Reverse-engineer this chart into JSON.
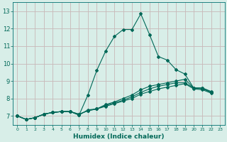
{
  "xlabel": "Humidex (Indice chaleur)",
  "xlim": [
    -0.5,
    23.5
  ],
  "ylim": [
    6.5,
    13.5
  ],
  "yticks": [
    7,
    8,
    9,
    10,
    11,
    12,
    13
  ],
  "xticks": [
    0,
    1,
    2,
    3,
    4,
    5,
    6,
    7,
    8,
    9,
    10,
    11,
    12,
    13,
    14,
    15,
    16,
    17,
    18,
    19,
    20,
    21,
    22,
    23
  ],
  "background_color": "#d8eee8",
  "grid_color": "#c8b8b8",
  "line_color": "#006858",
  "spine_color": "#007070",
  "lines": [
    [
      7.0,
      6.8,
      6.9,
      7.1,
      7.2,
      7.25,
      7.25,
      7.05,
      8.2,
      9.6,
      10.7,
      11.55,
      11.95,
      11.95,
      12.85,
      11.65,
      10.4,
      10.2,
      9.65,
      9.4,
      8.6,
      8.6,
      8.4
    ],
    [
      7.0,
      6.8,
      6.9,
      7.1,
      7.2,
      7.25,
      7.25,
      7.05,
      7.35,
      7.4,
      7.65,
      7.8,
      8.0,
      8.2,
      8.5,
      8.7,
      8.8,
      8.9,
      9.0,
      9.1,
      8.6,
      8.6,
      8.35
    ],
    [
      7.0,
      6.8,
      6.9,
      7.1,
      7.2,
      7.25,
      7.25,
      7.1,
      7.3,
      7.4,
      7.6,
      7.75,
      7.9,
      8.1,
      8.35,
      8.55,
      8.7,
      8.8,
      8.9,
      8.9,
      8.6,
      8.55,
      8.35
    ],
    [
      7.0,
      6.8,
      6.9,
      7.1,
      7.2,
      7.25,
      7.25,
      7.1,
      7.3,
      7.4,
      7.55,
      7.7,
      7.85,
      8.0,
      8.25,
      8.4,
      8.55,
      8.65,
      8.75,
      8.85,
      8.55,
      8.5,
      8.3
    ]
  ]
}
